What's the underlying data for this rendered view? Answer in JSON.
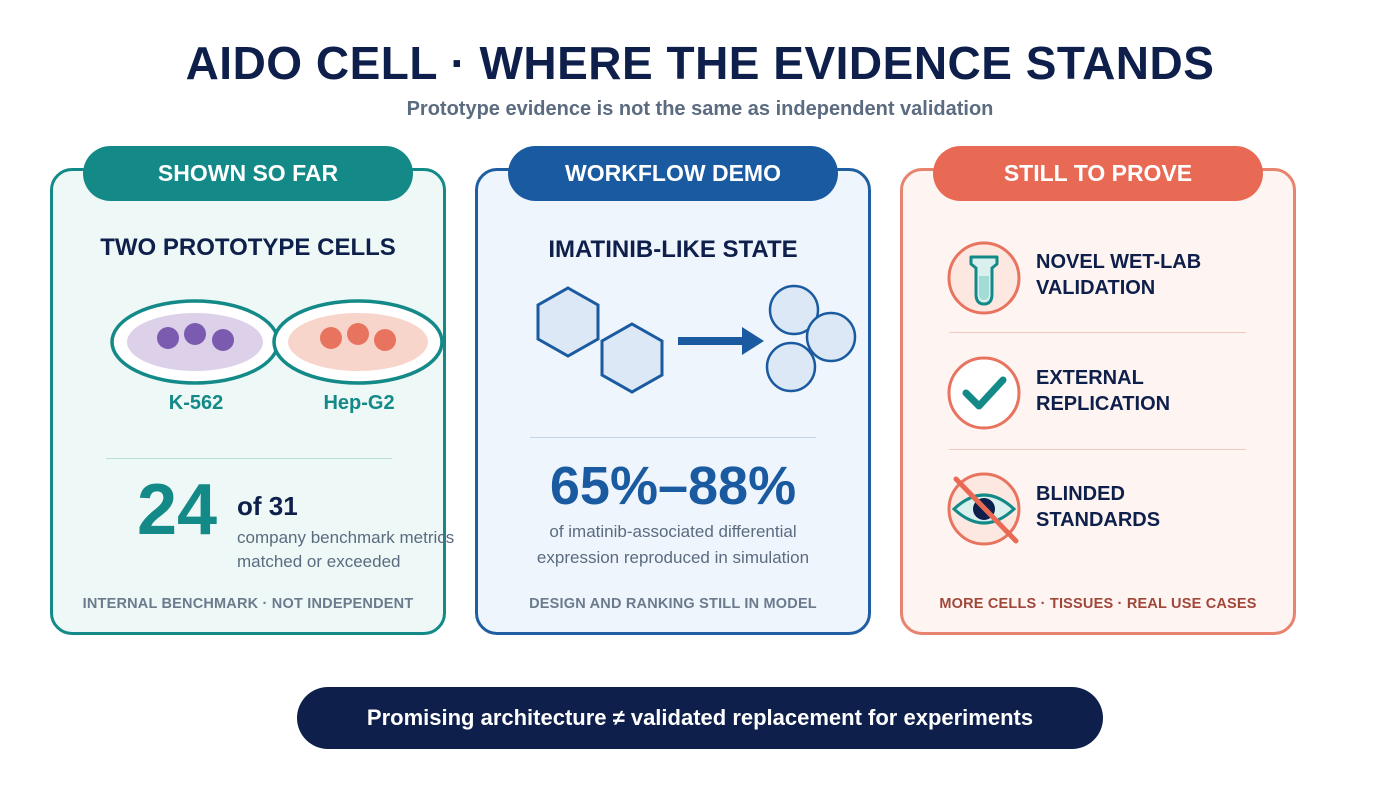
{
  "header": {
    "title": "AIDO CELL · WHERE THE EVIDENCE STANDS",
    "subtitle": "Prototype evidence is not the same as independent validation"
  },
  "colors": {
    "teal": "#148a88",
    "blue": "#1a5aa0",
    "coral": "#e86a55",
    "navy": "#0d1f4a",
    "gray": "#5b6b80"
  },
  "cards": {
    "shown": {
      "pill": "SHOWN SO FAR",
      "heading": "TWO PROTOTYPE CELLS",
      "cells": [
        "K-562",
        "Hep-G2"
      ],
      "metric_value": "24",
      "metric_of": "of 31",
      "metric_desc_line1": "company benchmark metrics",
      "metric_desc_line2": "matched or exceeded",
      "footer": "INTERNAL BENCHMARK · NOT INDEPENDENT"
    },
    "demo": {
      "pill": "WORKFLOW DEMO",
      "heading": "IMATINIB-LIKE STATE",
      "range": "65%–88%",
      "desc_line1": "of imatinib-associated differential",
      "desc_line2": "expression reproduced in simulation",
      "footer": "DESIGN AND RANKING STILL IN MODEL"
    },
    "prove": {
      "pill": "STILL TO PROVE",
      "items": [
        {
          "line1": "NOVEL WET-LAB",
          "line2": "VALIDATION",
          "icon": "test-tube-icon"
        },
        {
          "line1": "EXTERNAL",
          "line2": "REPLICATION",
          "icon": "checkmark-icon"
        },
        {
          "line1": "BLINDED",
          "line2": "STANDARDS",
          "icon": "eye-slash-icon"
        }
      ],
      "footer": "MORE CELLS · TISSUES · REAL USE CASES"
    }
  },
  "banner": "Promising architecture ≠ validated replacement for experiments"
}
